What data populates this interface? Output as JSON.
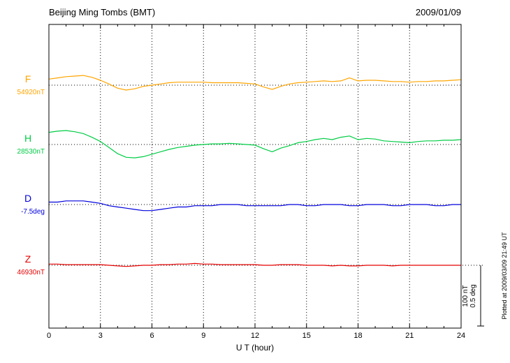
{
  "chart_data": {
    "type": "line",
    "title": "Beijing Ming Tombs (BMT)",
    "date": "2009/01/09",
    "xlabel": "U T (hour)",
    "xlim": [
      0,
      24
    ],
    "x_ticks": [
      0,
      3,
      6,
      9,
      12,
      15,
      18,
      21,
      24
    ],
    "x_step": 0.5,
    "grid": "vertical-dotted-at-3h",
    "legend_position": "left-of-each-trace",
    "scale_bar": {
      "nT": 100,
      "deg": 0.5,
      "label_nT": "100 nT",
      "label_deg": "0.5 deg"
    },
    "plotted_at": "Plotted at 2009/03/09 21:49 UT",
    "series": [
      {
        "name": "F",
        "baseline_label": "54920nT",
        "baseline_value": 54920,
        "unit": "nT",
        "color": "#FFA500",
        "offsets": [
          10,
          12,
          14,
          15,
          16,
          13,
          8,
          2,
          -5,
          -8,
          -6,
          -2,
          0,
          2,
          4,
          5,
          5,
          5,
          5,
          4,
          4,
          4,
          4,
          3,
          2,
          -3,
          -7,
          -2,
          2,
          4,
          5,
          6,
          7,
          6,
          7,
          12,
          7,
          8,
          8,
          7,
          6,
          6,
          5,
          6,
          6,
          7,
          7,
          8,
          9
        ]
      },
      {
        "name": "H",
        "baseline_label": "28530nT",
        "baseline_value": 28530,
        "unit": "nT",
        "color": "#00CC44",
        "offsets": [
          20,
          22,
          23,
          21,
          18,
          12,
          5,
          -5,
          -15,
          -21,
          -22,
          -20,
          -16,
          -12,
          -8,
          -5,
          -3,
          -1,
          0,
          1,
          1,
          2,
          1,
          0,
          -1,
          -7,
          -12,
          -6,
          -2,
          3,
          5,
          8,
          10,
          8,
          12,
          14,
          8,
          10,
          9,
          6,
          5,
          4,
          3,
          5,
          6,
          6,
          7,
          7,
          8
        ]
      },
      {
        "name": "D",
        "baseline_label": "-7.5deg",
        "baseline_value": -7.5,
        "unit": "deg",
        "color": "#0000DD",
        "offsets": [
          0.02,
          0.02,
          0.03,
          0.03,
          0.03,
          0.02,
          0.01,
          -0.01,
          -0.02,
          -0.03,
          -0.04,
          -0.05,
          -0.05,
          -0.04,
          -0.03,
          -0.02,
          -0.02,
          -0.01,
          -0.01,
          -0.01,
          0,
          0,
          0,
          -0.01,
          -0.01,
          -0.01,
          -0.01,
          -0.01,
          0,
          0,
          -0.01,
          -0.01,
          0,
          0,
          0,
          -0.01,
          -0.01,
          0,
          0,
          0,
          -0.01,
          -0.01,
          0,
          0,
          0,
          -0.01,
          -0.01,
          0,
          0
        ]
      },
      {
        "name": "Z",
        "baseline_label": "46930nT",
        "baseline_value": 46930,
        "unit": "nT",
        "color": "#E60000",
        "offsets": [
          2,
          2,
          1,
          1,
          1,
          1,
          1,
          0,
          -1,
          -2,
          -1,
          0,
          0,
          1,
          1,
          2,
          2,
          3,
          2,
          2,
          1,
          1,
          1,
          1,
          1,
          0,
          0,
          1,
          1,
          1,
          0,
          0,
          0,
          -1,
          0,
          -1,
          -1,
          0,
          0,
          0,
          -1,
          0,
          0,
          0,
          0,
          0,
          0,
          0,
          0
        ]
      }
    ]
  }
}
